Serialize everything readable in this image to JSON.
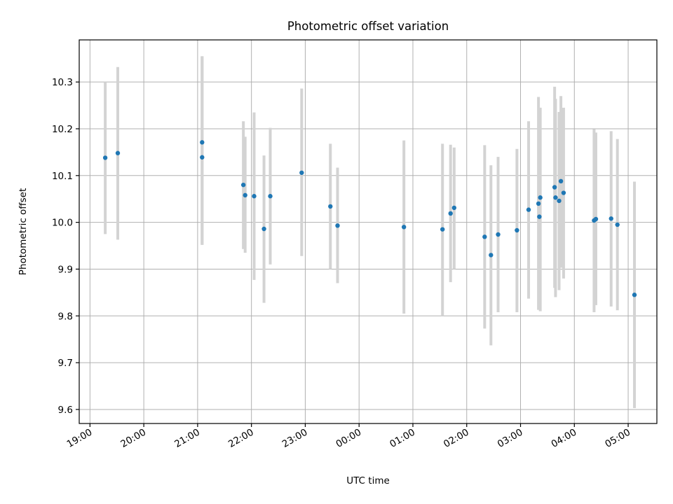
{
  "chart_data": {
    "type": "scatter",
    "title": "Photometric offset variation",
    "xlabel": "UTC time",
    "ylabel": "Photometric offset",
    "x_axis_kind": "time",
    "x_start": "2000-01-01T19:00",
    "xlim": [
      "2000-01-01T18:48",
      "2000-01-02T05:32"
    ],
    "ylim": [
      9.57,
      10.39
    ],
    "yticks": [
      9.6,
      9.7,
      9.8,
      9.9,
      10.0,
      10.1,
      10.2,
      10.3
    ],
    "ytick_labels": [
      "9.6",
      "9.7",
      "9.8",
      "9.9",
      "10.0",
      "10.1",
      "10.2",
      "10.3"
    ],
    "xticks": [
      "2000-01-01T19:00",
      "2000-01-01T20:00",
      "2000-01-01T21:00",
      "2000-01-01T22:00",
      "2000-01-01T23:00",
      "2000-01-02T00:00",
      "2000-01-02T01:00",
      "2000-01-02T02:00",
      "2000-01-02T03:00",
      "2000-01-02T04:00",
      "2000-01-02T05:00"
    ],
    "xtick_labels": [
      "19:00",
      "20:00",
      "21:00",
      "22:00",
      "23:00",
      "00:00",
      "01:00",
      "02:00",
      "03:00",
      "04:00",
      "05:00"
    ],
    "grid": true,
    "points": [
      {
        "t": "2000-01-01T19:17",
        "y": 10.138,
        "lo": 9.975,
        "hi": 10.3
      },
      {
        "t": "2000-01-01T19:31",
        "y": 10.148,
        "lo": 9.963,
        "hi": 10.332
      },
      {
        "t": "2000-01-01T21:05",
        "y": 10.171,
        "lo": 9.952,
        "hi": 10.355
      },
      {
        "t": "2000-01-01T21:05",
        "y": 10.139,
        "lo": 9.952,
        "hi": 10.355
      },
      {
        "t": "2000-01-01T21:51",
        "y": 10.08,
        "lo": 9.943,
        "hi": 10.216
      },
      {
        "t": "2000-01-01T21:53",
        "y": 10.058,
        "lo": 9.935,
        "hi": 10.183
      },
      {
        "t": "2000-01-01T22:03",
        "y": 10.056,
        "lo": 9.877,
        "hi": 10.235
      },
      {
        "t": "2000-01-01T22:14",
        "y": 9.986,
        "lo": 9.828,
        "hi": 10.143
      },
      {
        "t": "2000-01-01T22:21",
        "y": 10.056,
        "lo": 9.91,
        "hi": 10.202
      },
      {
        "t": "2000-01-01T22:56",
        "y": 10.106,
        "lo": 9.928,
        "hi": 10.286
      },
      {
        "t": "2000-01-01T23:28",
        "y": 10.034,
        "lo": 9.9,
        "hi": 10.168
      },
      {
        "t": "2000-01-01T23:36",
        "y": 9.993,
        "lo": 9.87,
        "hi": 10.117
      },
      {
        "t": "2000-01-02T00:50",
        "y": 9.99,
        "lo": 9.805,
        "hi": 10.175
      },
      {
        "t": "2000-01-02T01:33",
        "y": 9.985,
        "lo": 9.8,
        "hi": 10.168
      },
      {
        "t": "2000-01-02T01:42",
        "y": 10.019,
        "lo": 9.872,
        "hi": 10.166
      },
      {
        "t": "2000-01-02T01:46",
        "y": 10.031,
        "lo": 9.9,
        "hi": 10.16
      },
      {
        "t": "2000-01-02T02:20",
        "y": 9.969,
        "lo": 9.773,
        "hi": 10.165
      },
      {
        "t": "2000-01-02T02:27",
        "y": 9.93,
        "lo": 9.737,
        "hi": 10.122
      },
      {
        "t": "2000-01-02T02:35",
        "y": 9.974,
        "lo": 9.808,
        "hi": 10.14
      },
      {
        "t": "2000-01-02T02:56",
        "y": 9.983,
        "lo": 9.808,
        "hi": 10.157
      },
      {
        "t": "2000-01-02T03:09",
        "y": 10.027,
        "lo": 9.837,
        "hi": 10.216
      },
      {
        "t": "2000-01-02T03:20",
        "y": 10.04,
        "lo": 9.813,
        "hi": 10.268
      },
      {
        "t": "2000-01-02T03:21",
        "y": 10.012,
        "lo": 9.813,
        "hi": 10.245
      },
      {
        "t": "2000-01-02T03:22",
        "y": 10.053,
        "lo": 9.81,
        "hi": 10.245
      },
      {
        "t": "2000-01-02T03:38",
        "y": 10.075,
        "lo": 9.86,
        "hi": 10.29
      },
      {
        "t": "2000-01-02T03:39",
        "y": 10.053,
        "lo": 9.84,
        "hi": 10.264
      },
      {
        "t": "2000-01-02T03:43",
        "y": 10.046,
        "lo": 9.855,
        "hi": 10.236
      },
      {
        "t": "2000-01-02T03:45",
        "y": 10.088,
        "lo": 9.903,
        "hi": 10.27
      },
      {
        "t": "2000-01-02T03:48",
        "y": 10.063,
        "lo": 9.88,
        "hi": 10.245
      },
      {
        "t": "2000-01-02T04:22",
        "y": 10.004,
        "lo": 9.808,
        "hi": 10.199
      },
      {
        "t": "2000-01-02T04:24",
        "y": 10.007,
        "lo": 9.823,
        "hi": 10.192
      },
      {
        "t": "2000-01-02T04:41",
        "y": 10.008,
        "lo": 9.82,
        "hi": 10.195
      },
      {
        "t": "2000-01-02T04:48",
        "y": 9.995,
        "lo": 9.812,
        "hi": 10.178
      },
      {
        "t": "2000-01-02T05:07",
        "y": 9.845,
        "lo": 9.603,
        "hi": 10.087
      }
    ],
    "colors": {
      "points": "#1f77b4",
      "errorbars": "#d3d3d3",
      "grid": "#b0b0b0"
    }
  }
}
